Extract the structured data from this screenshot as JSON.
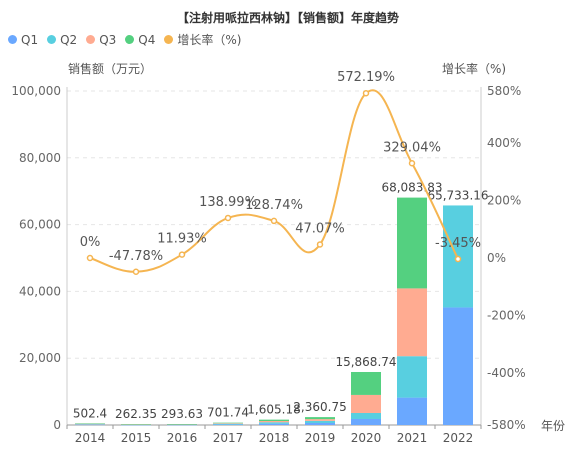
{
  "chart_data": {
    "type": "bar",
    "title": "【注射用哌拉西林钠】【销售额】年度趋势",
    "legend": [
      "Q1",
      "Q2",
      "Q3",
      "Q4",
      "增长率（%)"
    ],
    "y_left_label": "销售额（万元）",
    "y_right_label": "增长率（%)",
    "x_name": "年份",
    "categories": [
      "2014",
      "2015",
      "2016",
      "2017",
      "2018",
      "2019",
      "2020",
      "2021",
      "2022"
    ],
    "series": [
      {
        "name": "Q1",
        "type": "bar",
        "color": "#6aa8ff",
        "values": [
          120,
          65,
          70,
          170,
          400,
          600,
          1800,
          8200,
          35200
        ]
      },
      {
        "name": "Q2",
        "type": "bar",
        "color": "#58cfe0",
        "values": [
          130,
          70,
          75,
          180,
          420,
          640,
          1800,
          12400,
          30533.16
        ]
      },
      {
        "name": "Q3",
        "type": "bar",
        "color": "#ffab91",
        "values": [
          126.4,
          62.35,
          73.63,
          170.74,
          380,
          520,
          5400,
          20300,
          0
        ]
      },
      {
        "name": "Q4",
        "type": "bar",
        "color": "#54d080",
        "values": [
          126,
          65,
          75,
          181,
          405.18,
          600.75,
          6868.74,
          27183.83,
          0
        ]
      }
    ],
    "totals": [
      502.4,
      262.35,
      293.63,
      701.74,
      1605.18,
      2360.75,
      15868.74,
      68083.83,
      65733.16
    ],
    "total_labels": [
      "502.4",
      "262.35",
      "293.63",
      "701.74",
      "1,605.18",
      "2,360.75",
      "15,868.74",
      "68,083.83",
      "65,733.16"
    ],
    "growth": {
      "name": "增长率（%)",
      "type": "line",
      "color": "#f5b551",
      "values": [
        0,
        -47.78,
        11.93,
        138.99,
        128.74,
        47.07,
        572.19,
        329.04,
        -3.45
      ],
      "labels": [
        "0%",
        "-47.78%",
        "11.93%",
        "138.99%",
        "128.74%",
        "47.07%",
        "572.19%",
        "329.04%",
        "-3.45%"
      ]
    },
    "y_left": {
      "min": 0,
      "max": 100000,
      "ticks": [
        "0",
        "20,000",
        "40,000",
        "60,000",
        "80,000",
        "100,000"
      ]
    },
    "y_right": {
      "min": -580,
      "max": 580,
      "ticks": [
        "-580%",
        "-400%",
        "-200%",
        "0%",
        "200%",
        "400%",
        "580%"
      ],
      "tick_values": [
        -580,
        -400,
        -200,
        0,
        200,
        400,
        580
      ]
    },
    "grid": true,
    "legend_position": "top-left"
  }
}
